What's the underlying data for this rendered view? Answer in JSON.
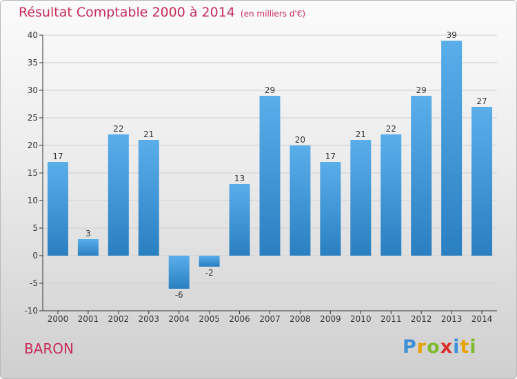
{
  "title": "Résultat Comptable 2000 à 2014",
  "unit_note": "(en milliers d'€)",
  "commune": "BARON",
  "logo": {
    "letters": [
      "P",
      "r",
      "o",
      "x",
      "i",
      "t",
      "i"
    ],
    "colors": [
      "#3d8fd6",
      "#e8a200",
      "#7fba2c",
      "#d8312a",
      "#3d8fd6",
      "#e8a200",
      "#7fba2c"
    ]
  },
  "colors": {
    "title": "#c8295a",
    "bar_top": "#5aaeea",
    "bar_bottom": "#2a7fc1",
    "axis": "#333333",
    "grid": "#d0d0d0"
  },
  "chart_data": {
    "type": "bar",
    "categories": [
      "2000",
      "2001",
      "2002",
      "2003",
      "2004",
      "2005",
      "2006",
      "2007",
      "2008",
      "2009",
      "2010",
      "2011",
      "2012",
      "2013",
      "2014"
    ],
    "values": [
      17,
      3,
      22,
      21,
      -6,
      -2,
      13,
      29,
      20,
      17,
      21,
      22,
      29,
      39,
      27
    ],
    "ylim": [
      -10,
      40
    ],
    "yticks": [
      -10,
      -5,
      0,
      5,
      10,
      15,
      20,
      25,
      30,
      35,
      40
    ],
    "grid": true
  }
}
